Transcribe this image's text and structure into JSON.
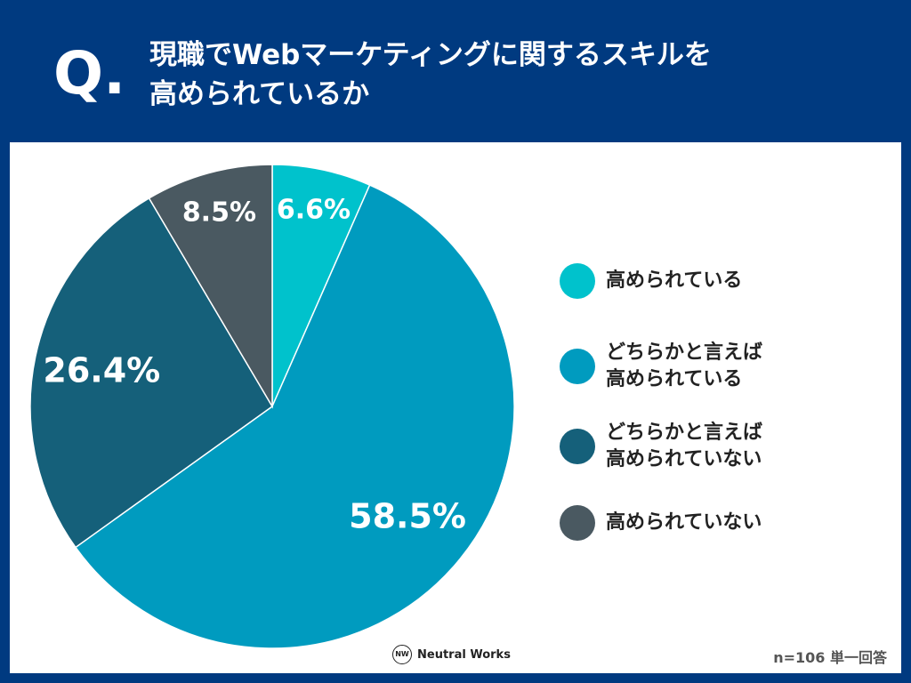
{
  "header": {
    "q_mark": "Q.",
    "question_line1": "現職でWebマーケティングに関するスキルを",
    "question_line2": "高められているか"
  },
  "chart_data": {
    "type": "pie",
    "slices": [
      {
        "label": "高められている",
        "value": 6.6,
        "display": "6.6%",
        "color": "#00C2CC"
      },
      {
        "label": "どちらかと言えば\n高められている",
        "value": 58.5,
        "display": "58.5%",
        "color": "#009BBF"
      },
      {
        "label": "どちらかと言えば\n高められていない",
        "value": 26.4,
        "display": "26.4%",
        "color": "#15607A"
      },
      {
        "label": "高められていない",
        "value": 8.5,
        "display": "8.5%",
        "color": "#4A5961"
      }
    ],
    "legend_position": "right"
  },
  "footer": {
    "brand_mark": "NW",
    "brand_name": "Neutral Works",
    "sample": "n=106 単一回答"
  }
}
